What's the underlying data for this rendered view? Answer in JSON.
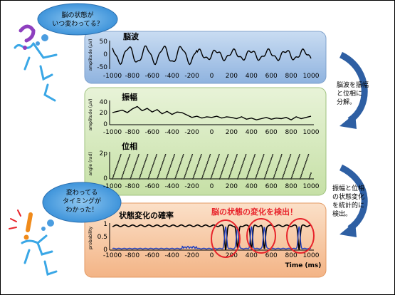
{
  "bubbles": {
    "top": [
      "脳の状態が",
      "いつ変わってる？"
    ],
    "bottom": [
      "変わってる",
      "タイミングが",
      "わかった！"
    ]
  },
  "panels": {
    "eeg": {
      "title": "脳波",
      "ylabel": "amplitude (µV)",
      "yticks": [
        "50",
        "0",
        "-50"
      ]
    },
    "amplitude": {
      "title": "振幅",
      "ylabel": "amplitude (µV)",
      "yticks": [
        "40",
        "20",
        "0"
      ]
    },
    "phase": {
      "title": "位相",
      "ylabel": "angle (rad)",
      "yticks": [
        "2p",
        "0"
      ]
    },
    "probability": {
      "title": "状態変化の確率",
      "highlight": "脳の状態の変化を検出！",
      "ylabel": "probability",
      "yticks": [
        "1",
        "0.5",
        "0"
      ],
      "xlabel": "Time (ms)"
    }
  },
  "xticks": [
    "-1000",
    "-800",
    "-600",
    "-400",
    "-200",
    "0",
    "200",
    "400",
    "600",
    "800",
    "1000"
  ],
  "notes": {
    "first": [
      "脳波を振幅",
      "と位相に",
      "分解。"
    ],
    "second": [
      "振幅と位相",
      "の状態変化",
      "を統計的に",
      "検出。"
    ]
  },
  "colors": {
    "blue_panel": "#a9c6e8",
    "green_panel": "#d5e8bf",
    "orange_panel": "#f6c6a0",
    "arrow": "#2e5fa3",
    "highlight": "#e8242b",
    "prob_line_blue": "#1f3fbf"
  },
  "chart_data": [
    {
      "type": "line",
      "title": "脳波",
      "ylabel": "amplitude (µV)",
      "xlim": [
        -1000,
        1000
      ],
      "ylim": [
        -50,
        50
      ],
      "series": [
        {
          "x": [
            -1000,
            1000
          ],
          "description_only": true
        }
      ]
    },
    {
      "type": "line",
      "title": "振幅",
      "ylabel": "amplitude (µV)",
      "xlim": [
        -1000,
        1000
      ],
      "ylim": [
        0,
        40
      ],
      "x": [
        -1000,
        -950,
        -900,
        -850,
        -800,
        -750,
        -700,
        -650,
        -600,
        -550,
        -500,
        -450,
        -400,
        -350,
        -300,
        -250,
        -200,
        -150,
        -100,
        -50,
        0,
        50,
        100,
        150,
        200,
        250,
        300,
        350,
        400,
        450,
        500,
        550,
        600,
        650,
        700,
        750,
        800,
        850,
        900,
        950,
        1000
      ],
      "values": [
        20,
        22,
        24,
        20,
        26,
        30,
        23,
        27,
        21,
        25,
        18,
        22,
        17,
        21,
        20,
        16,
        12,
        14,
        11,
        13,
        12,
        14,
        11,
        13,
        12,
        10,
        13,
        9,
        11,
        8,
        10,
        12,
        9,
        11,
        10,
        12,
        8,
        13,
        10,
        12,
        14
      ]
    },
    {
      "type": "scatter",
      "title": "位相",
      "ylabel": "angle (rad)",
      "xlim": [
        -1000,
        1000
      ],
      "ylim": [
        0,
        6.28
      ]
    },
    {
      "type": "line",
      "title": "状態変化の確率",
      "ylabel": "probability",
      "xlabel": "Time (ms)",
      "xlim": [
        -1000,
        1000
      ],
      "ylim": [
        0,
        1
      ]
    }
  ]
}
